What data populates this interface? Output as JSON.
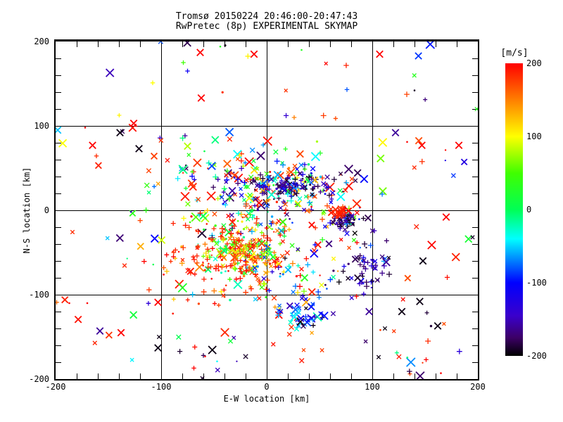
{
  "header": {
    "title_line1": "Tromsø 20150224 20:46:00-20:47:43",
    "title_line2": "RwPretec (8p) EXPERIMENTAL SKYMAP"
  },
  "axes": {
    "xlabel": "E-W location [km]",
    "ylabel": "N-S location [km]",
    "xlim": [
      -200,
      200
    ],
    "ylim": [
      -200,
      200
    ],
    "xticks": [
      -200,
      -100,
      0,
      100,
      200
    ],
    "yticks": [
      -200,
      -100,
      0,
      100,
      200
    ],
    "minor_tick_km": 20,
    "grid": true
  },
  "colorbar": {
    "label": "[m/s]",
    "ticks": [
      200,
      100,
      0,
      -100,
      -200
    ],
    "vmin": -200,
    "vmax": 200,
    "stops": [
      [
        200,
        "#ff0000"
      ],
      [
        150,
        "#ff7f00"
      ],
      [
        100,
        "#ffff00"
      ],
      [
        50,
        "#40ff00"
      ],
      [
        0,
        "#00ff55"
      ],
      [
        -40,
        "#00ffff"
      ],
      [
        -100,
        "#0000ff"
      ],
      [
        -145,
        "#3a00cc"
      ],
      [
        -175,
        "#3c0066"
      ],
      [
        -200,
        "#000000"
      ]
    ]
  },
  "chart_data": {
    "type": "scatter",
    "title": "RwPretec (8p) EXPERIMENTAL SKYMAP",
    "x_unit": "km",
    "y_unit": "km",
    "value_unit": "m/s",
    "representation": "cluster-summary-plus-outliers",
    "seed": 1337,
    "markers_legend": {
      "+": "small plus",
      "x": "small cross",
      "X": "large cross",
      ".": "dot"
    },
    "clusters": [
      {
        "name": "background-field",
        "shape": "uniform",
        "xr": [
          -200,
          200
        ],
        "yr": [
          -200,
          200
        ],
        "n": 90,
        "v_bands": [
          [
            0.38,
            170,
            200
          ],
          [
            0.18,
            -200,
            -160
          ],
          [
            0.1,
            -160,
            -90
          ],
          [
            0.08,
            -90,
            -30
          ],
          [
            0.1,
            -30,
            40
          ],
          [
            0.08,
            40,
            110
          ],
          [
            0.08,
            110,
            170
          ]
        ],
        "markers": {
          "X": 0.45,
          "x": 0.2,
          "+": 0.2,
          ".": 0.15
        }
      },
      {
        "name": "halo-north",
        "shape": "gauss",
        "cx": 5,
        "cy": 38,
        "sx": 60,
        "sy": 32,
        "n": 85,
        "v_bands": [
          [
            0.35,
            170,
            200
          ],
          [
            0.15,
            -200,
            -150
          ],
          [
            0.1,
            -150,
            -80
          ],
          [
            0.12,
            -80,
            -20
          ],
          [
            0.13,
            -20,
            60
          ],
          [
            0.15,
            60,
            170
          ]
        ],
        "markers": {
          "X": 0.3,
          "+": 0.3,
          "x": 0.25,
          ".": 0.15
        }
      },
      {
        "name": "central-cloud",
        "shape": "gauss",
        "cx": -5,
        "cy": -8,
        "sx": 45,
        "sy": 33,
        "n": 250,
        "v_bands": [
          [
            0.25,
            170,
            200
          ],
          [
            0.12,
            100,
            170
          ],
          [
            0.13,
            40,
            100
          ],
          [
            0.15,
            -10,
            40
          ],
          [
            0.12,
            -60,
            -10
          ],
          [
            0.1,
            -120,
            -60
          ],
          [
            0.13,
            -200,
            -120
          ]
        ],
        "markers": {
          "+": 0.4,
          "x": 0.3,
          ".": 0.2,
          "X": 0.1
        }
      },
      {
        "name": "dark-arc-northeast",
        "shape": "gauss",
        "cx": 18,
        "cy": 30,
        "sx": 26,
        "sy": 8,
        "n": 150,
        "v_bands": [
          [
            0.55,
            -200,
            -150
          ],
          [
            0.22,
            -150,
            -90
          ],
          [
            0.08,
            -90,
            -30
          ],
          [
            0.07,
            -30,
            40
          ],
          [
            0.08,
            40,
            200
          ]
        ],
        "markers": {
          "+": 0.35,
          "x": 0.35,
          ".": 0.25,
          "X": 0.05
        }
      },
      {
        "name": "navy-blob-east",
        "shape": "gauss",
        "cx": 75,
        "cy": -11,
        "sx": 8,
        "sy": 6,
        "n": 55,
        "v_bands": [
          [
            0.7,
            -200,
            -160
          ],
          [
            0.2,
            -160,
            -110
          ],
          [
            0.1,
            -110,
            -60
          ]
        ],
        "markers": {
          "x": 0.4,
          "+": 0.35,
          ".": 0.25
        }
      },
      {
        "name": "red-knot-east",
        "shape": "gauss",
        "cx": 71,
        "cy": -2,
        "sx": 6,
        "sy": 5,
        "n": 18,
        "v_bands": [
          [
            1.0,
            180,
            200
          ]
        ],
        "markers": {
          "X": 0.5,
          "x": 0.5
        }
      },
      {
        "name": "yellow-orange-hotspot",
        "shape": "gauss",
        "cx": -21,
        "cy": -50,
        "sx": 16,
        "sy": 12,
        "n": 150,
        "v_bands": [
          [
            0.3,
            160,
            200
          ],
          [
            0.3,
            90,
            160
          ],
          [
            0.25,
            30,
            90
          ],
          [
            0.15,
            -20,
            30
          ]
        ],
        "markers": {
          "+": 0.5,
          "x": 0.3,
          ".": 0.15,
          "X": 0.05
        }
      },
      {
        "name": "red-spray-southwest",
        "shape": "gauss",
        "cx": -50,
        "cy": -58,
        "sx": 38,
        "sy": 26,
        "n": 115,
        "v_bands": [
          [
            0.78,
            175,
            200
          ],
          [
            0.12,
            120,
            175
          ],
          [
            0.05,
            40,
            120
          ],
          [
            0.05,
            -60,
            0
          ]
        ],
        "markers": {
          "+": 0.6,
          ".": 0.25,
          "x": 0.1,
          "X": 0.05
        }
      },
      {
        "name": "south-mixed-band",
        "shape": "gauss",
        "cx": 8,
        "cy": -85,
        "sx": 25,
        "sy": 16,
        "n": 65,
        "v_bands": [
          [
            0.3,
            170,
            200
          ],
          [
            0.15,
            90,
            170
          ],
          [
            0.2,
            20,
            90
          ],
          [
            0.15,
            -60,
            -10
          ],
          [
            0.2,
            -150,
            -60
          ]
        ],
        "markers": {
          "x": 0.35,
          "+": 0.35,
          ".": 0.2,
          "X": 0.1
        }
      },
      {
        "name": "blue-cluster-south",
        "shape": "gauss",
        "cx": 33,
        "cy": -120,
        "sx": 13,
        "sy": 9,
        "n": 42,
        "v_bands": [
          [
            0.4,
            -140,
            -90
          ],
          [
            0.3,
            -90,
            -50
          ],
          [
            0.15,
            -50,
            -20
          ],
          [
            0.15,
            -200,
            -140
          ]
        ],
        "markers": {
          "x": 0.55,
          "X": 0.25,
          "+": 0.2
        }
      },
      {
        "name": "dark-cluster-southeast",
        "shape": "gauss",
        "cx": 95,
        "cy": -63,
        "sx": 14,
        "sy": 14,
        "n": 55,
        "v_bands": [
          [
            0.6,
            -200,
            -155
          ],
          [
            0.25,
            -155,
            -110
          ],
          [
            0.15,
            -110,
            -60
          ]
        ],
        "markers": {
          "+": 0.45,
          "x": 0.3,
          ".": 0.2,
          "X": 0.05
        }
      },
      {
        "name": "sparse-deep-south",
        "shape": "uniform",
        "xr": [
          -130,
          170
        ],
        "yr": [
          -200,
          -135
        ],
        "n": 22,
        "v_bands": [
          [
            0.4,
            170,
            200
          ],
          [
            0.35,
            -200,
            -150
          ],
          [
            0.25,
            -60,
            30
          ]
        ],
        "markers": {
          "x": 0.4,
          "+": 0.3,
          ".": 0.3
        }
      }
    ],
    "outliers": [
      {
        "x": -198,
        "y": 95,
        "v": -55,
        "m": "X"
      },
      {
        "x": -172,
        "y": 98,
        "v": 200,
        "m": "."
      },
      {
        "x": -165,
        "y": 77,
        "v": 200,
        "m": "X"
      },
      {
        "x": -139,
        "y": 92,
        "v": -195,
        "m": "X"
      },
      {
        "x": -126,
        "y": 103,
        "v": 200,
        "m": "X"
      },
      {
        "x": -121,
        "y": 73,
        "v": -195,
        "m": "X"
      },
      {
        "x": -108,
        "y": 151,
        "v": 100,
        "m": "+"
      },
      {
        "x": -79,
        "y": 175,
        "v": 50,
        "m": "+"
      },
      {
        "x": -75,
        "y": 165,
        "v": -110,
        "m": "+"
      },
      {
        "x": -75,
        "y": 76,
        "v": 80,
        "m": "X"
      },
      {
        "x": -63,
        "y": 187,
        "v": 200,
        "m": "X"
      },
      {
        "x": -62,
        "y": 133,
        "v": 200,
        "m": "X"
      },
      {
        "x": -44,
        "y": 194,
        "v": 30,
        "m": "."
      },
      {
        "x": -12,
        "y": 185,
        "v": 200,
        "m": "X"
      },
      {
        "x": 33,
        "y": 190,
        "v": 30,
        "m": "."
      },
      {
        "x": 26,
        "y": 110,
        "v": 150,
        "m": "+"
      },
      {
        "x": 76,
        "y": 143,
        "v": -80,
        "m": "+"
      },
      {
        "x": 107,
        "y": 185,
        "v": 200,
        "m": "X"
      },
      {
        "x": 140,
        "y": 142,
        "v": -190,
        "m": "."
      },
      {
        "x": 199,
        "y": 120,
        "v": 30,
        "m": "x"
      },
      {
        "x": 122,
        "y": 92,
        "v": -160,
        "m": "X"
      },
      {
        "x": 133,
        "y": 81,
        "v": 200,
        "m": "."
      },
      {
        "x": 147,
        "y": 77,
        "v": 200,
        "m": "X"
      },
      {
        "x": 182,
        "y": 77,
        "v": 200,
        "m": "X"
      },
      {
        "x": 170,
        "y": -8,
        "v": 200,
        "m": "X"
      },
      {
        "x": 195,
        "y": -32,
        "v": -190,
        "m": "x"
      },
      {
        "x": 148,
        "y": -60,
        "v": -195,
        "m": "X"
      },
      {
        "x": -199,
        "y": -109,
        "v": 160,
        "m": "+"
      },
      {
        "x": -187,
        "y": -110,
        "v": 200,
        "m": "."
      },
      {
        "x": -170,
        "y": -110,
        "v": 200,
        "m": "."
      },
      {
        "x": -103,
        "y": -109,
        "v": 200,
        "m": "X"
      },
      {
        "x": -158,
        "y": -143,
        "v": -160,
        "m": "X"
      },
      {
        "x": -138,
        "y": -145,
        "v": 200,
        "m": "X"
      },
      {
        "x": -102,
        "y": -150,
        "v": -195,
        "m": "x"
      },
      {
        "x": -103,
        "y": -163,
        "v": -195,
        "m": "X"
      },
      {
        "x": -69,
        "y": -187,
        "v": 200,
        "m": "+"
      },
      {
        "x": -60,
        "y": -172,
        "v": -180,
        "m": "+"
      },
      {
        "x": -47,
        "y": -179,
        "v": -40,
        "m": "."
      },
      {
        "x": -61,
        "y": -199,
        "v": -190,
        "m": "x"
      },
      {
        "x": 85,
        "y": -102,
        "v": 200,
        "m": "+"
      },
      {
        "x": 97,
        "y": -120,
        "v": -160,
        "m": "X"
      },
      {
        "x": 145,
        "y": -108,
        "v": -195,
        "m": "X"
      },
      {
        "x": 128,
        "y": -120,
        "v": -195,
        "m": "X"
      },
      {
        "x": 162,
        "y": -137,
        "v": -195,
        "m": "X"
      },
      {
        "x": 112,
        "y": -140,
        "v": -195,
        "m": "x"
      },
      {
        "x": 106,
        "y": -174,
        "v": -195,
        "m": "x"
      },
      {
        "x": 151,
        "y": -177,
        "v": 200,
        "m": "+"
      },
      {
        "x": 165,
        "y": -193,
        "v": 200,
        "m": "."
      }
    ]
  }
}
